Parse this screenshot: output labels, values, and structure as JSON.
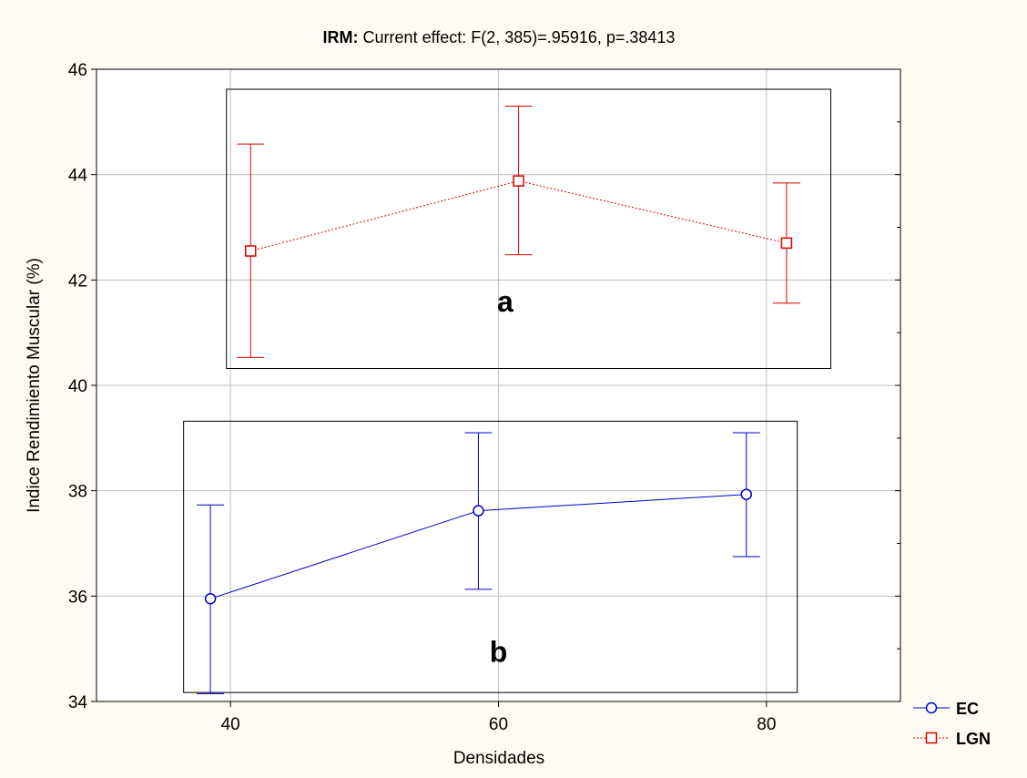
{
  "chart_data": {
    "type": "line",
    "title_bold": "IRM:",
    "title_rest": " Current effect: F(2, 385)=.95916, p=.38413",
    "xlabel": "Densidades",
    "ylabel": "Indice Rendimiento Muscular (%)",
    "x_ticks": [
      40,
      60,
      80
    ],
    "x_tick_labels": [
      "40",
      "60",
      "80"
    ],
    "y_ticks": [
      34,
      36,
      38,
      40,
      42,
      44,
      46
    ],
    "y_tick_labels": [
      "34",
      "36",
      "38",
      "40",
      "42",
      "44",
      "46"
    ],
    "xlim": [
      30,
      90
    ],
    "ylim": [
      34,
      46
    ],
    "grid": true,
    "legend_position": "bottom-right outside",
    "series": [
      {
        "name": "EC",
        "color": "#0000cc",
        "marker": "circle",
        "line_style": "solid",
        "x": [
          38.5,
          58.5,
          78.5
        ],
        "y": [
          35.95,
          37.62,
          37.93
        ],
        "err_low": [
          34.15,
          36.13,
          36.75
        ],
        "err_high": [
          37.73,
          39.1,
          39.1
        ]
      },
      {
        "name": "LGN",
        "color": "#dd0000",
        "marker": "square",
        "line_style": "dotted",
        "x": [
          41.5,
          61.5,
          81.5
        ],
        "y": [
          42.55,
          43.88,
          42.7
        ],
        "err_low": [
          40.53,
          42.48,
          41.56
        ],
        "err_high": [
          44.58,
          45.3,
          43.84
        ]
      }
    ],
    "group_boxes": [
      {
        "label": "a",
        "x_range": [
          39.7,
          84.8
        ],
        "y_range": [
          40.32,
          45.62
        ],
        "label_at": [
          60.5,
          41.4
        ]
      },
      {
        "label": "b",
        "x_range": [
          36.5,
          82.3
        ],
        "y_range": [
          34.17,
          39.32
        ],
        "label_at": [
          60.0,
          34.75
        ]
      }
    ]
  }
}
